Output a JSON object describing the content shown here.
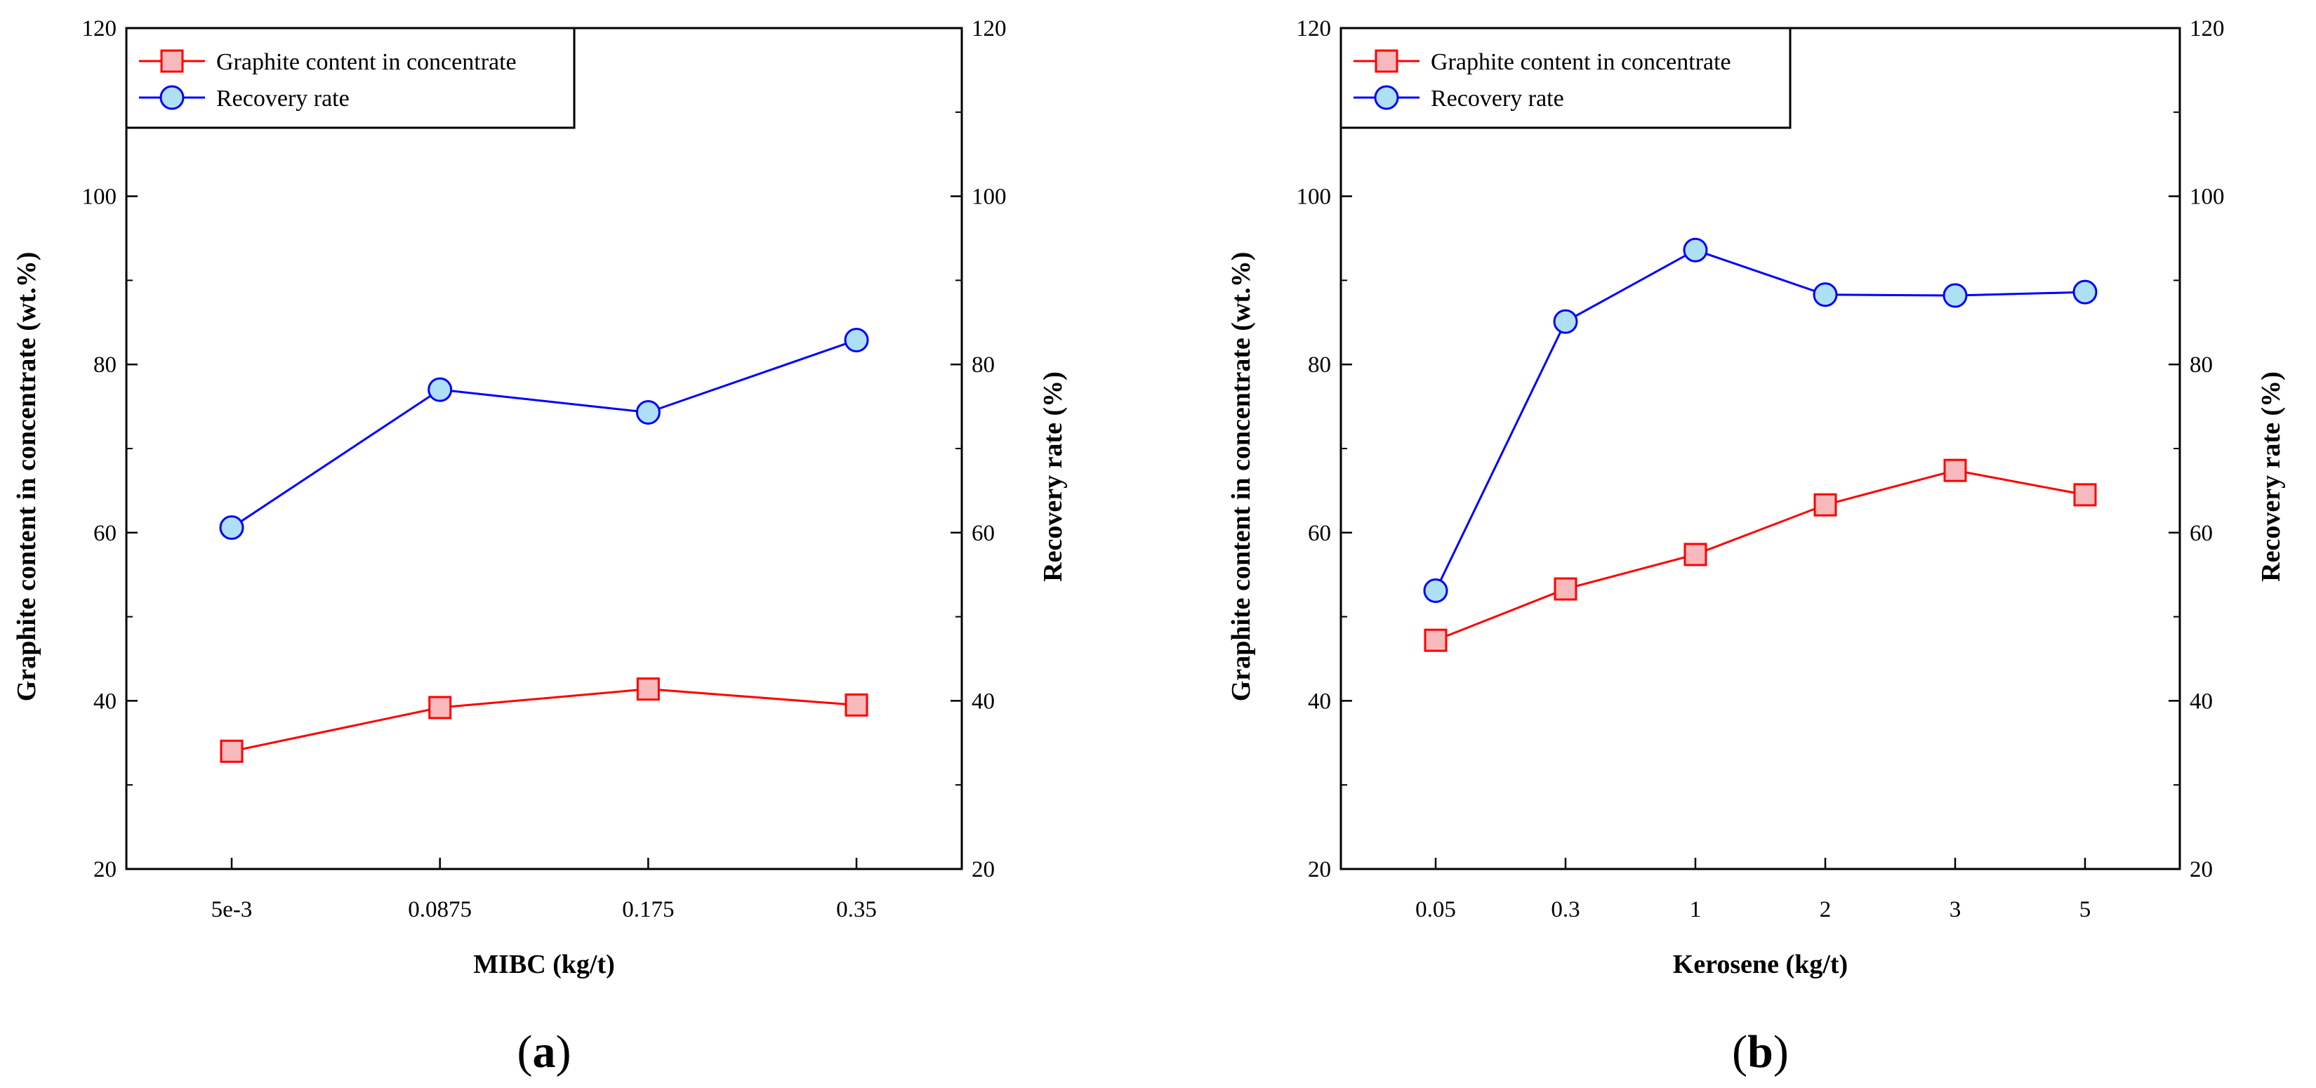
{
  "chart_data": [
    {
      "type": "line",
      "panel_label": "a",
      "xlabel": "MIBC (kg/t)",
      "ylabel_left": "Graphite content in concentrate (wt.%)",
      "ylabel_right": "Recovery rate (%)",
      "categories": [
        "5e-3",
        "0.0875",
        "0.175",
        "0.35"
      ],
      "ylim_left": [
        20,
        120
      ],
      "ylim_right": [
        20,
        120
      ],
      "yticks_left": [
        "20",
        "40",
        "60",
        "80",
        "100",
        "120"
      ],
      "yticks_right": [
        "20",
        "40",
        "60",
        "80",
        "100",
        "120"
      ],
      "legend_location": "top-left",
      "series": [
        {
          "name": "Graphite content in concentrate",
          "axis": "left",
          "marker": "square",
          "color": "#ff0000",
          "fill": "#f7b9bc",
          "values": [
            34.0,
            39.2,
            41.4,
            39.5
          ]
        },
        {
          "name": "Recovery rate",
          "axis": "right",
          "marker": "circle",
          "color": "#0000ff",
          "fill": "#aee0f5",
          "values": [
            60.6,
            77.0,
            74.3,
            82.9
          ]
        }
      ]
    },
    {
      "type": "line",
      "panel_label": "b",
      "xlabel": "Kerosene (kg/t)",
      "ylabel_left": "Graphite content in concentrate (wt.%)",
      "ylabel_right": "Recovery rate (%)",
      "categories": [
        "0.05",
        "0.3",
        "1",
        "2",
        "3",
        "5"
      ],
      "ylim_left": [
        20,
        120
      ],
      "ylim_right": [
        20,
        120
      ],
      "yticks_left": [
        "20",
        "40",
        "60",
        "80",
        "100",
        "120"
      ],
      "yticks_right": [
        "20",
        "40",
        "60",
        "80",
        "100",
        "120"
      ],
      "legend_location": "top-left",
      "series": [
        {
          "name": "Graphite content in concentrate",
          "axis": "left",
          "marker": "square",
          "color": "#ff0000",
          "fill": "#f7b9bc",
          "values": [
            47.2,
            53.3,
            57.4,
            63.3,
            67.4,
            64.5
          ]
        },
        {
          "name": "Recovery rate",
          "axis": "right",
          "marker": "circle",
          "color": "#0000ff",
          "fill": "#aee0f5",
          "values": [
            53.1,
            85.1,
            93.6,
            88.3,
            88.2,
            88.6
          ]
        }
      ]
    }
  ]
}
